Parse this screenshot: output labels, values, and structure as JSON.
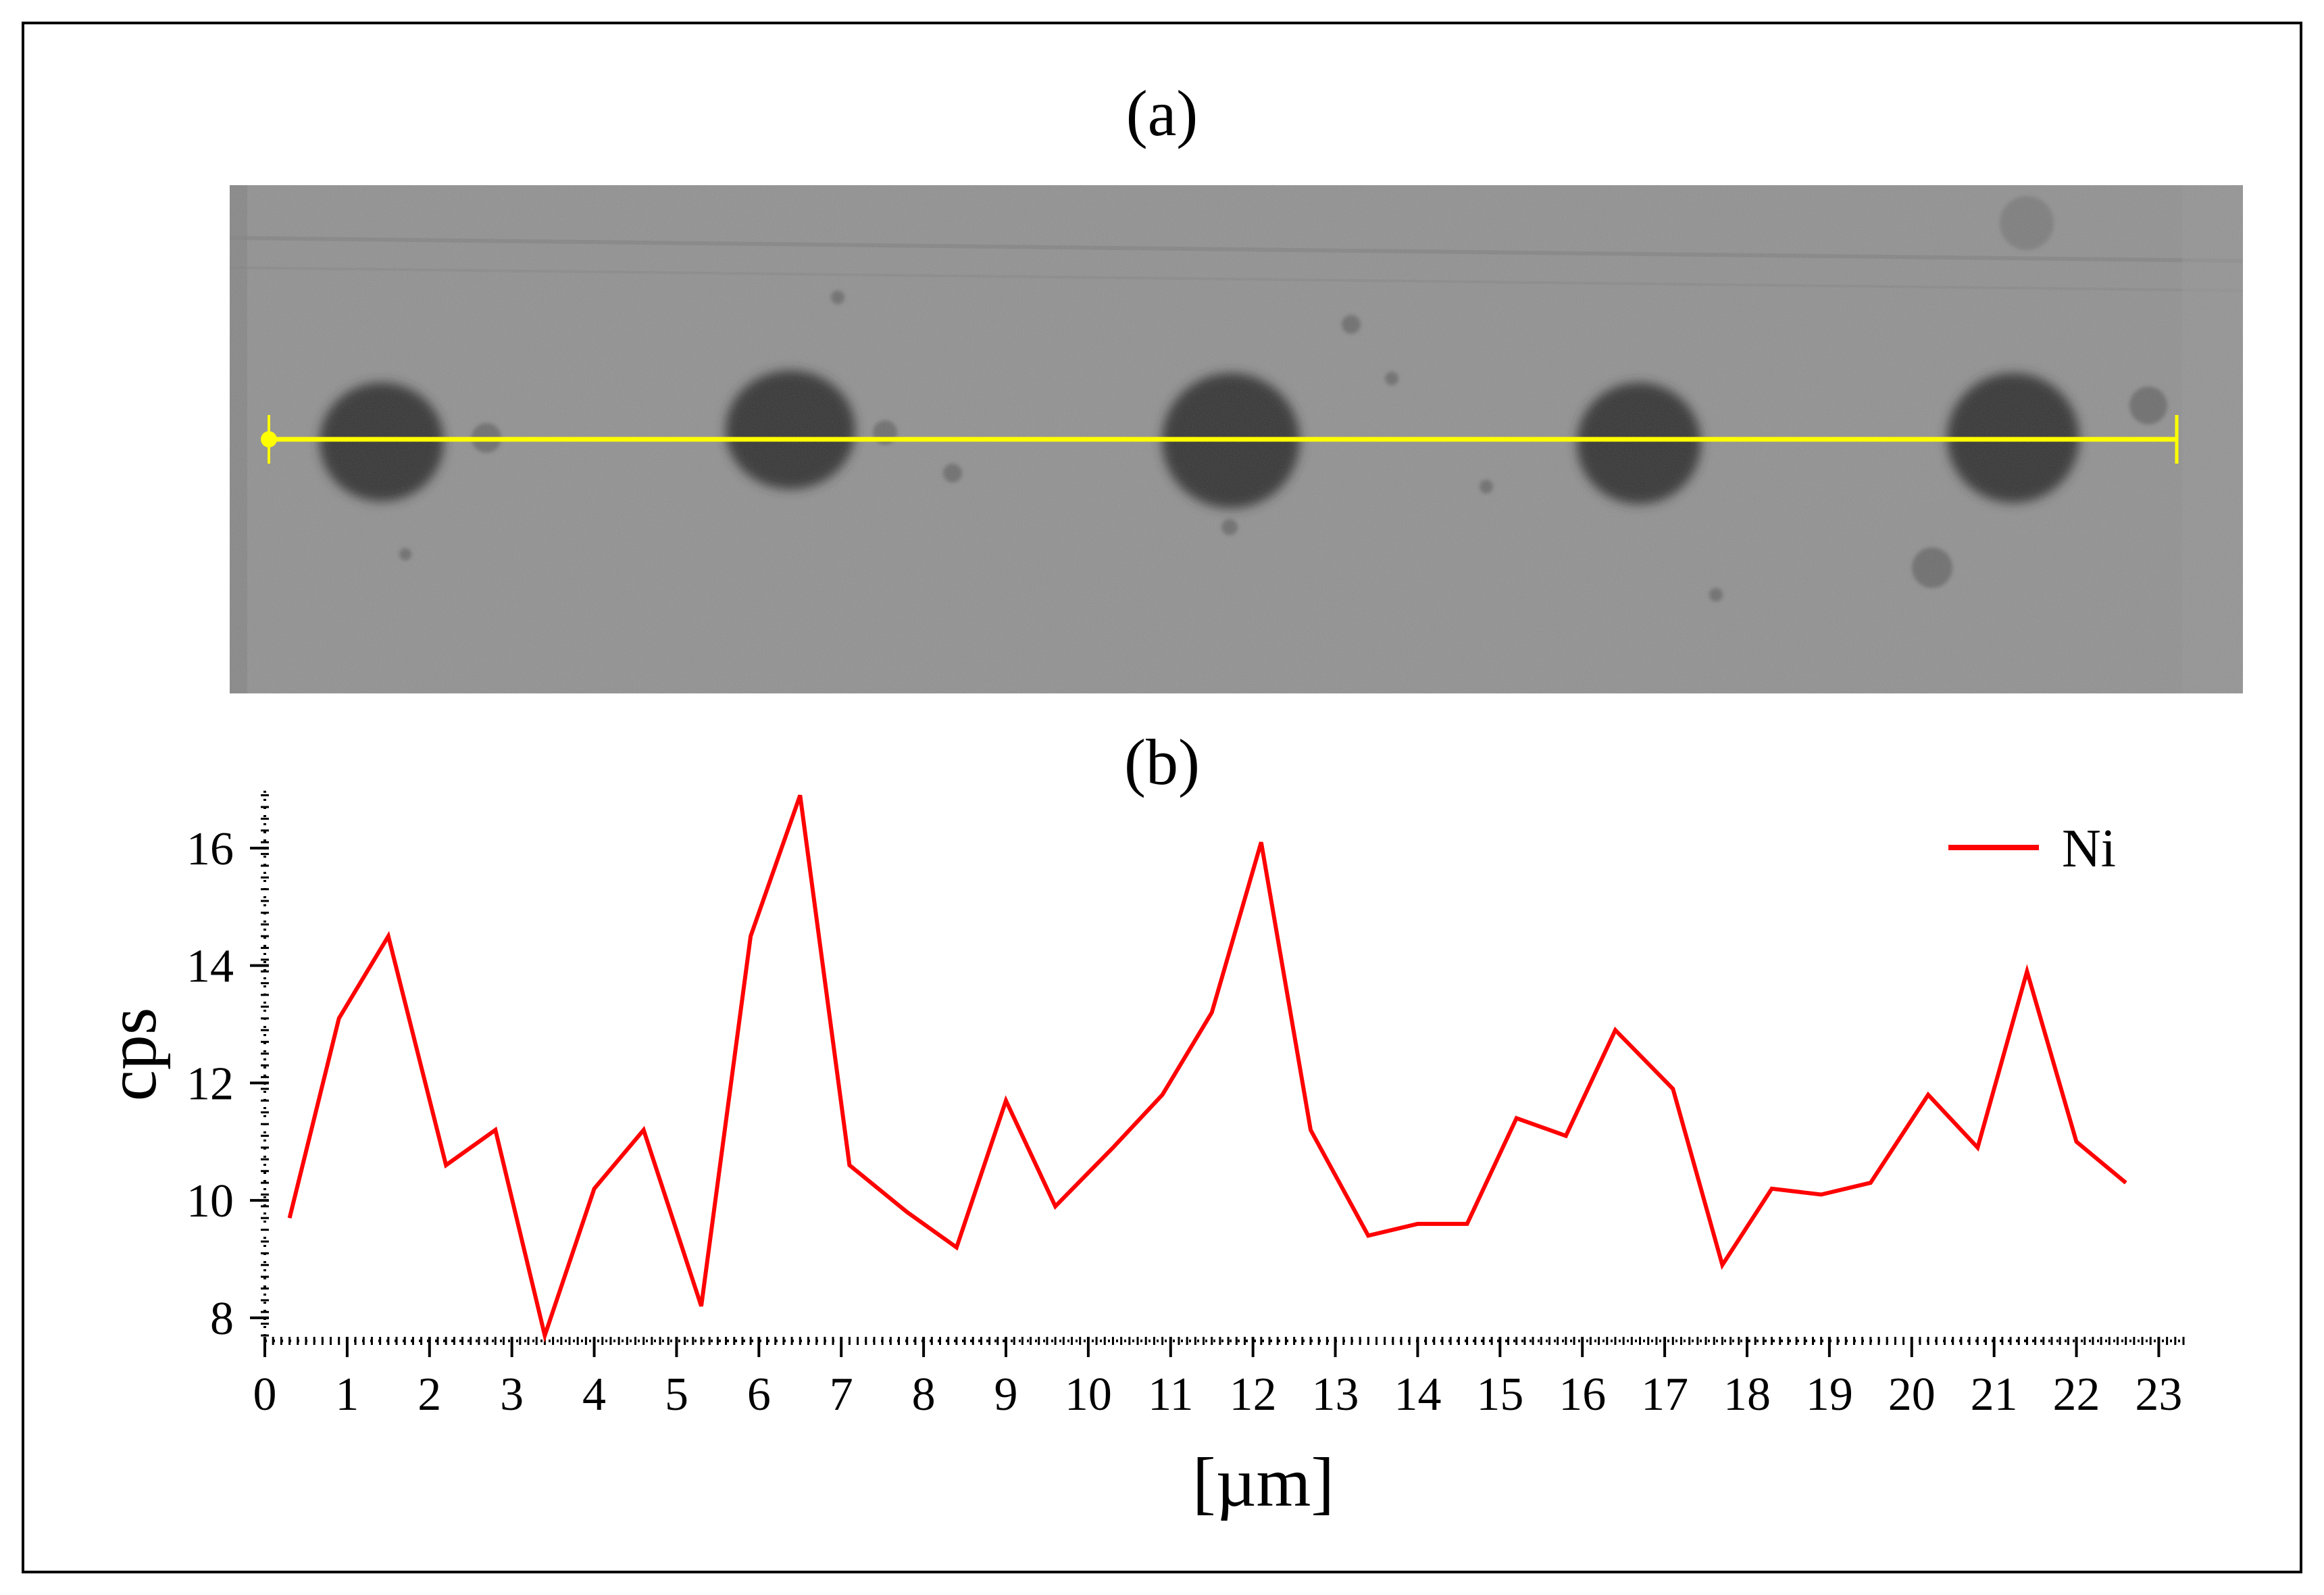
{
  "panels": {
    "a_label": "(a)",
    "b_label": "(b)"
  },
  "image_panel": {
    "description_name": "grayscale-micrograph",
    "line_color": "#ffff00",
    "particles_count_visible": 5
  },
  "chart_data": {
    "type": "line",
    "title": "",
    "xlabel": "[µm]",
    "ylabel": "cps",
    "xlim": [
      0,
      23.3
    ],
    "ylim": [
      7.7,
      17.0
    ],
    "x_ticks": [
      0,
      1,
      2,
      3,
      4,
      5,
      6,
      7,
      8,
      9,
      10,
      11,
      12,
      13,
      14,
      15,
      16,
      17,
      18,
      19,
      20,
      21,
      22,
      23
    ],
    "x_tick_labels": [
      "0",
      "1",
      "2",
      "3",
      "4",
      "5",
      "6",
      "7",
      "8",
      "9",
      "10",
      "11",
      "12",
      "13",
      "14",
      "15",
      "16",
      "17",
      "18",
      "19",
      "20",
      "21",
      "22",
      "23"
    ],
    "y_ticks": [
      8,
      10,
      12,
      14,
      16
    ],
    "y_tick_labels": [
      "8",
      "10",
      "12",
      "14",
      "16"
    ],
    "grid": false,
    "legend_position": "top-right",
    "series": [
      {
        "name": "Ni",
        "color": "#ff0000",
        "x": [
          0.3,
          0.9,
          1.5,
          2.2,
          2.8,
          3.4,
          4.0,
          4.6,
          5.3,
          5.9,
          6.5,
          7.1,
          7.8,
          8.4,
          9.0,
          9.6,
          10.3,
          10.9,
          11.5,
          12.1,
          12.7,
          13.4,
          14.0,
          14.6,
          15.2,
          15.8,
          16.4,
          17.1,
          17.7,
          18.3,
          18.9,
          19.5,
          20.2,
          20.8,
          21.4,
          22.0,
          22.6
        ],
        "y": [
          9.7,
          13.1,
          14.5,
          10.6,
          11.2,
          7.7,
          10.2,
          11.2,
          8.2,
          14.5,
          16.9,
          10.6,
          9.8,
          9.2,
          11.7,
          9.9,
          10.9,
          11.8,
          13.2,
          16.1,
          11.2,
          9.4,
          9.6,
          9.6,
          11.4,
          11.1,
          12.9,
          11.9,
          8.9,
          10.2,
          10.1,
          10.3,
          11.8,
          10.9,
          13.9,
          11.0,
          10.3
        ]
      }
    ]
  }
}
